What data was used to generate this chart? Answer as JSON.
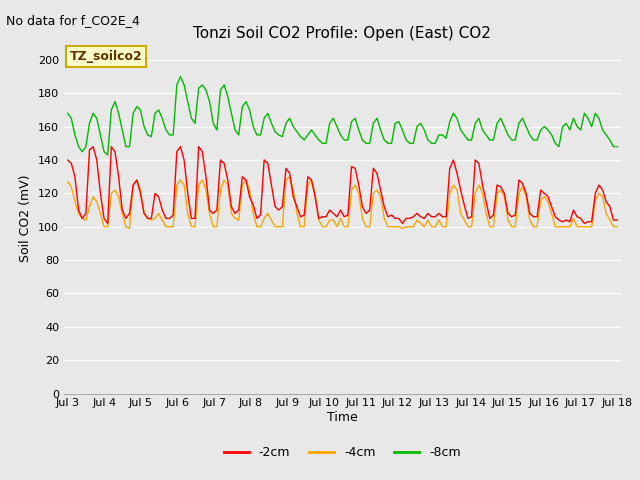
{
  "title": "Tonzi Soil CO2 Profile: Open (East) CO2",
  "subtitle": "No data for f_CO2E_4",
  "ylabel": "Soil CO2 (mV)",
  "xlabel": "Time",
  "legend_label": "TZ_soilco2",
  "x_tick_labels": [
    "Jul 3",
    "Jul 4",
    "Jul 5",
    "Jul 6",
    "Jul 7",
    "Jul 8",
    "Jul 9",
    "Jul 10",
    "Jul 11",
    "Jul 12",
    "Jul 13",
    "Jul 14",
    "Jul 15",
    "Jul 16",
    "Jul 17",
    "Jul 18"
  ],
  "ylim": [
    0,
    210
  ],
  "yticks": [
    0,
    20,
    40,
    60,
    80,
    100,
    120,
    140,
    160,
    180,
    200
  ],
  "line_colors": [
    "#ff0000",
    "#ffa500",
    "#00bb00"
  ],
  "line_labels": [
    "-2cm",
    "-4cm",
    "-8cm"
  ],
  "bg_color": "#e8e8e8",
  "plot_bg": "#e8e8e8",
  "grid_color": "#ffffff",
  "series_2cm": [
    140,
    138,
    130,
    110,
    105,
    108,
    146,
    148,
    140,
    120,
    105,
    102,
    148,
    145,
    130,
    110,
    105,
    108,
    125,
    128,
    120,
    108,
    105,
    105,
    120,
    118,
    110,
    105,
    105,
    107,
    145,
    148,
    140,
    120,
    105,
    105,
    148,
    145,
    130,
    110,
    108,
    110,
    140,
    138,
    128,
    112,
    108,
    110,
    130,
    128,
    118,
    113,
    105,
    107,
    140,
    138,
    125,
    112,
    110,
    112,
    135,
    132,
    118,
    112,
    106,
    107,
    130,
    128,
    118,
    105,
    106,
    106,
    110,
    108,
    106,
    110,
    106,
    107,
    136,
    135,
    125,
    112,
    108,
    110,
    135,
    132,
    122,
    112,
    106,
    107,
    105,
    105,
    102,
    105,
    105,
    106,
    108,
    106,
    105,
    108,
    106,
    106,
    108,
    106,
    106,
    135,
    140,
    132,
    122,
    113,
    105,
    106,
    140,
    138,
    125,
    115,
    105,
    107,
    125,
    124,
    120,
    108,
    106,
    107,
    128,
    126,
    120,
    108,
    106,
    106,
    122,
    120,
    118,
    112,
    106,
    104,
    103,
    104,
    103,
    110,
    106,
    105,
    102,
    103,
    103,
    120,
    125,
    122,
    115,
    112,
    104,
    104
  ],
  "series_4cm": [
    127,
    124,
    115,
    108,
    105,
    104,
    112,
    118,
    115,
    108,
    100,
    100,
    120,
    122,
    118,
    108,
    100,
    99,
    125,
    128,
    122,
    108,
    105,
    104,
    105,
    108,
    104,
    100,
    100,
    100,
    125,
    128,
    125,
    108,
    100,
    100,
    125,
    128,
    122,
    108,
    100,
    100,
    122,
    128,
    125,
    108,
    105,
    104,
    125,
    128,
    122,
    108,
    100,
    100,
    105,
    108,
    104,
    100,
    100,
    100,
    128,
    130,
    122,
    108,
    100,
    100,
    125,
    128,
    120,
    104,
    100,
    100,
    104,
    104,
    100,
    105,
    100,
    100,
    122,
    125,
    120,
    105,
    100,
    100,
    120,
    122,
    118,
    105,
    100,
    100,
    100,
    100,
    99,
    100,
    100,
    100,
    104,
    102,
    100,
    104,
    100,
    100,
    104,
    100,
    100,
    120,
    125,
    122,
    108,
    104,
    100,
    100,
    120,
    125,
    120,
    108,
    100,
    100,
    120,
    122,
    118,
    104,
    100,
    100,
    120,
    124,
    118,
    104,
    100,
    100,
    116,
    118,
    115,
    108,
    100,
    100,
    100,
    100,
    100,
    105,
    100,
    100,
    100,
    100,
    100,
    116,
    120,
    118,
    108,
    104,
    100,
    100
  ],
  "series_8cm": [
    168,
    165,
    155,
    148,
    145,
    148,
    162,
    168,
    165,
    155,
    145,
    143,
    170,
    175,
    168,
    158,
    148,
    148,
    168,
    172,
    170,
    160,
    155,
    154,
    168,
    170,
    165,
    158,
    155,
    155,
    185,
    190,
    185,
    175,
    165,
    162,
    183,
    185,
    182,
    175,
    162,
    158,
    182,
    185,
    178,
    168,
    158,
    155,
    172,
    175,
    170,
    160,
    155,
    155,
    165,
    168,
    162,
    157,
    155,
    154,
    162,
    165,
    160,
    157,
    154,
    152,
    155,
    158,
    155,
    152,
    150,
    150,
    162,
    165,
    160,
    155,
    152,
    152,
    163,
    165,
    158,
    152,
    150,
    150,
    162,
    165,
    158,
    152,
    150,
    150,
    162,
    163,
    158,
    152,
    150,
    150,
    160,
    162,
    158,
    152,
    150,
    150,
    155,
    155,
    153,
    163,
    168,
    165,
    158,
    155,
    152,
    152,
    162,
    165,
    158,
    155,
    152,
    152,
    162,
    165,
    160,
    155,
    152,
    152,
    162,
    165,
    160,
    155,
    152,
    152,
    158,
    160,
    158,
    155,
    150,
    148,
    160,
    162,
    158,
    165,
    160,
    158,
    168,
    165,
    160,
    168,
    165,
    158,
    155,
    152,
    148,
    148
  ],
  "n_points": 152
}
